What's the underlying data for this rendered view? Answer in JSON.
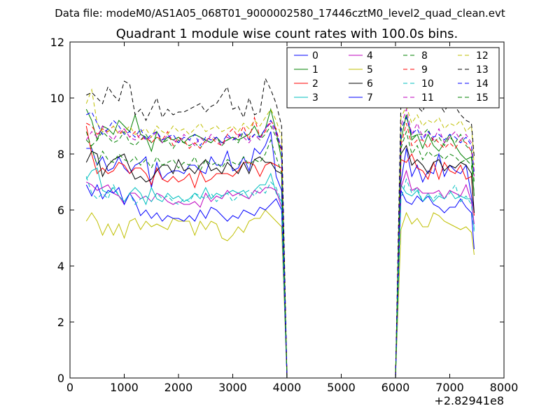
{
  "suptitle": "Data file: modeM0/AS1A05_068T01_9000002580_17446cztM0_level2_quad_clean.evt",
  "chart_data": {
    "type": "line",
    "title": "Quadrant 1 module wise count rates with 100.0s bins.",
    "xlabel": "",
    "ylabel": "",
    "x_offset_label": "+2.82941e8",
    "xlim": [
      0,
      8000
    ],
    "ylim": [
      0,
      12
    ],
    "xticks": [
      0,
      1000,
      2000,
      3000,
      4000,
      5000,
      6000,
      7000,
      8000
    ],
    "yticks": [
      0,
      2,
      4,
      6,
      8,
      10,
      12
    ],
    "legend_position": "upper-right",
    "legend_columns": 4,
    "x": [
      300,
      400,
      500,
      600,
      700,
      800,
      900,
      1000,
      1100,
      1200,
      1300,
      1400,
      1500,
      1600,
      1700,
      1800,
      1900,
      2000,
      2100,
      2200,
      2300,
      2400,
      2500,
      2600,
      2700,
      2800,
      2900,
      3000,
      3100,
      3200,
      3300,
      3400,
      3500,
      3600,
      3700,
      3800,
      3900,
      4000,
      5000,
      6000,
      6100,
      6200,
      6300,
      6400,
      6500,
      6600,
      6700,
      6800,
      6900,
      7000,
      7100,
      7200,
      7300,
      7400,
      7450
    ],
    "series": [
      {
        "name": "0",
        "color": "#0000ff",
        "dash": false,
        "values": [
          8.2,
          8.2,
          7.6,
          7.9,
          7.4,
          7.5,
          7.9,
          7.5,
          7.3,
          7.6,
          7.7,
          7.9,
          6.8,
          7.7,
          7.1,
          7.3,
          7.4,
          7.4,
          7.3,
          7.6,
          7.6,
          7.4,
          7.3,
          7.9,
          7.6,
          7.6,
          8.1,
          7.4,
          7.5,
          7.9,
          7.4,
          8.2,
          8.0,
          8.3,
          8.8,
          7.2,
          6.7,
          0,
          0,
          0,
          7.0,
          8.2,
          7.2,
          7.6,
          7.0,
          7.4,
          7.3,
          8.0,
          7.2,
          7.6,
          7.4,
          7.3,
          7.6,
          6.5,
          5.9
        ]
      },
      {
        "name": "1",
        "color": "#008000",
        "dash": false,
        "values": [
          9.6,
          9.2,
          8.5,
          9.0,
          8.9,
          8.7,
          9.2,
          9.0,
          8.8,
          9.4,
          8.7,
          8.6,
          8.1,
          8.8,
          8.4,
          8.6,
          8.5,
          8.6,
          8.4,
          8.6,
          8.7,
          8.6,
          8.5,
          8.4,
          8.6,
          8.4,
          8.5,
          8.6,
          8.5,
          8.6,
          8.7,
          9.0,
          8.6,
          8.9,
          9.6,
          8.8,
          7.8,
          0,
          0,
          0,
          8.5,
          9.4,
          8.5,
          8.7,
          8.2,
          8.7,
          8.3,
          8.1,
          8.4,
          8.7,
          8.3,
          8.0,
          7.8,
          7.9,
          6.5
        ]
      },
      {
        "name": "2",
        "color": "#ff0000",
        "dash": false,
        "values": [
          9.0,
          8.0,
          7.3,
          7.5,
          7.3,
          7.4,
          7.7,
          7.6,
          7.3,
          7.5,
          7.5,
          7.3,
          6.9,
          7.5,
          7.1,
          7.0,
          7.2,
          7.0,
          7.1,
          7.3,
          6.8,
          7.4,
          7.0,
          7.1,
          7.3,
          7.3,
          7.3,
          7.2,
          7.4,
          7.7,
          7.7,
          7.6,
          7.2,
          7.6,
          7.7,
          7.6,
          7.5,
          0,
          0,
          0,
          7.8,
          7.7,
          8.0,
          7.5,
          7.4,
          7.1,
          7.7,
          7.1,
          7.7,
          7.4,
          7.3,
          7.6,
          7.1,
          7.2,
          5.8
        ]
      },
      {
        "name": "3",
        "color": "#00bfbf",
        "dash": false,
        "values": [
          7.1,
          7.4,
          7.5,
          6.7,
          6.6,
          6.8,
          6.5,
          6.3,
          6.6,
          6.8,
          6.6,
          6.2,
          6.8,
          6.4,
          6.3,
          6.6,
          6.4,
          6.5,
          6.3,
          6.4,
          6.6,
          6.4,
          6.8,
          6.4,
          6.6,
          6.5,
          6.6,
          6.7,
          6.6,
          6.7,
          6.4,
          6.7,
          6.9,
          6.9,
          7.3,
          6.6,
          6.3,
          0,
          0,
          0,
          6.9,
          6.6,
          6.5,
          6.7,
          6.3,
          6.6,
          6.3,
          6.5,
          6.4,
          6.7,
          6.4,
          6.5,
          6.4,
          6.4,
          5.3
        ]
      },
      {
        "name": "4",
        "color": "#bf00bf",
        "dash": false,
        "values": [
          7.0,
          6.9,
          6.7,
          6.8,
          6.9,
          6.6,
          6.5,
          6.2,
          6.6,
          6.6,
          6.4,
          6.5,
          6.3,
          6.6,
          6.5,
          6.3,
          6.2,
          6.3,
          6.2,
          6.2,
          6.3,
          6.1,
          6.6,
          6.3,
          6.5,
          6.4,
          6.7,
          6.5,
          6.6,
          6.5,
          6.4,
          6.7,
          6.6,
          6.8,
          6.8,
          6.7,
          6.1,
          0,
          0,
          0,
          6.8,
          7.4,
          6.7,
          6.8,
          6.6,
          6.6,
          6.6,
          6.7,
          6.4,
          6.7,
          6.6,
          6.5,
          6.9,
          6.3,
          5.5
        ]
      },
      {
        "name": "5",
        "color": "#bfbf00",
        "dash": false,
        "values": [
          5.6,
          5.9,
          5.6,
          5.1,
          5.5,
          5.1,
          5.5,
          5.0,
          5.6,
          5.7,
          5.3,
          5.6,
          5.4,
          5.5,
          5.4,
          5.3,
          5.7,
          5.6,
          5.6,
          5.6,
          5.1,
          5.6,
          5.3,
          5.6,
          5.5,
          5.0,
          4.9,
          5.1,
          5.4,
          5.2,
          5.6,
          5.7,
          5.7,
          6.0,
          5.8,
          5.6,
          5.4,
          0,
          0,
          0,
          5.3,
          5.9,
          5.5,
          5.7,
          5.4,
          5.4,
          5.9,
          5.8,
          5.6,
          5.5,
          5.4,
          5.3,
          5.4,
          5.2,
          4.4
        ]
      },
      {
        "name": "6",
        "color": "#000000",
        "dash": false,
        "values": [
          7.7,
          8.1,
          8.0,
          7.2,
          7.6,
          7.8,
          7.9,
          8.0,
          7.5,
          7.1,
          7.2,
          7.0,
          7.1,
          7.4,
          7.6,
          7.6,
          7.3,
          7.8,
          7.4,
          7.5,
          7.3,
          7.6,
          7.8,
          7.4,
          7.5,
          7.3,
          7.7,
          7.5,
          7.3,
          7.7,
          7.3,
          7.8,
          7.9,
          7.7,
          7.7,
          7.4,
          7.3,
          0,
          0,
          0,
          8.0,
          8.3,
          7.6,
          7.8,
          7.6,
          7.3,
          7.7,
          7.8,
          7.4,
          7.6,
          7.5,
          7.7,
          7.6,
          7.3,
          5.9
        ]
      },
      {
        "name": "7",
        "color": "#0000ff",
        "dash": false,
        "values": [
          6.9,
          6.5,
          6.9,
          6.4,
          6.7,
          6.6,
          6.8,
          6.2,
          6.6,
          6.3,
          5.8,
          6.0,
          5.7,
          5.9,
          5.6,
          5.8,
          5.7,
          5.7,
          5.6,
          5.8,
          5.6,
          6.0,
          5.7,
          6.1,
          6.0,
          5.8,
          5.6,
          5.8,
          5.7,
          6.0,
          5.9,
          5.8,
          6.1,
          6.0,
          6.2,
          6.4,
          6.0,
          0,
          0,
          0,
          6.7,
          6.3,
          6.2,
          6.5,
          6.3,
          6.5,
          6.2,
          6.1,
          5.9,
          6.1,
          6.1,
          6.4,
          6.1,
          5.9,
          4.6
        ]
      },
      {
        "name": "8",
        "color": "#008000",
        "dash": true,
        "values": [
          8.5,
          8.3,
          8.5,
          8.8,
          8.6,
          8.4,
          8.5,
          8.8,
          8.4,
          8.3,
          8.5,
          8.7,
          8.4,
          8.6,
          8.4,
          8.5,
          8.2,
          8.5,
          8.4,
          8.3,
          8.4,
          8.2,
          8.5,
          8.4,
          8.6,
          8.3,
          8.5,
          8.6,
          8.4,
          8.8,
          8.5,
          8.7,
          8.5,
          8.7,
          9.0,
          8.6,
          8.1,
          0,
          0,
          0,
          8.8,
          9.4,
          8.6,
          8.7,
          8.7,
          8.9,
          8.4,
          8.6,
          8.3,
          8.6,
          8.4,
          8.7,
          8.3,
          8.1,
          7.0
        ]
      },
      {
        "name": "9",
        "color": "#ff0000",
        "dash": true,
        "values": [
          9.1,
          9.0,
          8.7,
          8.9,
          8.8,
          9.0,
          8.7,
          8.9,
          8.6,
          8.8,
          8.5,
          8.6,
          8.4,
          8.6,
          8.5,
          8.8,
          8.3,
          8.6,
          8.5,
          8.2,
          8.4,
          8.2,
          8.5,
          8.6,
          8.4,
          8.3,
          8.7,
          8.9,
          8.6,
          9.0,
          8.5,
          9.3,
          8.6,
          8.8,
          9.2,
          8.9,
          8.1,
          0,
          0,
          0,
          8.3,
          9.1,
          8.3,
          8.5,
          8.5,
          8.2,
          8.6,
          8.4,
          8.2,
          8.4,
          8.2,
          8.5,
          8.4,
          8.1,
          7.4
        ]
      },
      {
        "name": "10",
        "color": "#00bfbf",
        "dash": true,
        "values": [
          7.2,
          6.6,
          6.4,
          6.6,
          6.4,
          6.9,
          6.5,
          6.3,
          6.6,
          6.2,
          6.4,
          6.5,
          6.3,
          6.6,
          6.4,
          6.5,
          6.3,
          6.2,
          6.4,
          6.3,
          6.6,
          6.5,
          6.4,
          6.6,
          6.3,
          6.5,
          6.6,
          6.3,
          6.5,
          6.6,
          6.7,
          6.5,
          6.8,
          6.6,
          7.0,
          6.8,
          6.3,
          0,
          0,
          0,
          6.4,
          7.1,
          6.6,
          6.8,
          6.3,
          6.5,
          6.4,
          6.6,
          6.4,
          6.6,
          6.9,
          6.3,
          6.5,
          6.2,
          5.2
        ]
      },
      {
        "name": "11",
        "color": "#bf00bf",
        "dash": true,
        "values": [
          8.5,
          8.8,
          8.6,
          9.0,
          8.7,
          8.5,
          8.8,
          8.9,
          8.6,
          8.5,
          8.7,
          8.5,
          8.6,
          8.8,
          8.4,
          8.7,
          8.5,
          8.4,
          8.7,
          8.5,
          8.3,
          8.6,
          8.4,
          8.7,
          8.5,
          8.3,
          8.6,
          8.5,
          8.7,
          8.6,
          8.4,
          8.7,
          8.5,
          8.9,
          9.1,
          8.7,
          8.2,
          0,
          0,
          0,
          9.0,
          9.6,
          8.7,
          9.1,
          8.6,
          8.8,
          8.5,
          8.9,
          8.4,
          8.6,
          8.8,
          8.5,
          8.7,
          8.4,
          7.2
        ]
      },
      {
        "name": "12",
        "color": "#bfbf00",
        "dash": true,
        "values": [
          9.8,
          10.3,
          9.1,
          8.8,
          8.8,
          9.0,
          8.7,
          8.8,
          9.0,
          8.7,
          8.8,
          8.9,
          8.6,
          9.0,
          8.8,
          8.7,
          9.0,
          8.8,
          8.9,
          8.7,
          8.9,
          9.1,
          8.8,
          8.9,
          9.0,
          8.8,
          8.9,
          9.0,
          8.8,
          9.1,
          8.9,
          9.2,
          9.0,
          9.3,
          9.6,
          9.2,
          8.6,
          0,
          0,
          0,
          9.3,
          9.7,
          9.1,
          9.4,
          9.0,
          9.2,
          9.1,
          9.3,
          8.9,
          9.1,
          9.0,
          9.2,
          8.8,
          9.0,
          7.6
        ]
      },
      {
        "name": "13",
        "color": "#000000",
        "dash": true,
        "values": [
          10.1,
          10.2,
          10.0,
          9.8,
          10.4,
          10.1,
          9.9,
          10.6,
          10.5,
          9.4,
          9.6,
          9.2,
          9.6,
          10.0,
          9.3,
          9.6,
          9.4,
          9.5,
          9.5,
          9.6,
          9.7,
          9.8,
          9.5,
          9.7,
          9.8,
          10.1,
          10.4,
          9.6,
          9.7,
          9.3,
          10.0,
          9.4,
          9.5,
          10.7,
          10.3,
          9.8,
          9.0,
          0,
          0,
          0,
          9.9,
          10.5,
          9.8,
          9.7,
          9.5,
          10.1,
          10.4,
          9.8,
          9.5,
          9.9,
          9.7,
          9.4,
          9.2,
          9.1,
          7.9
        ]
      },
      {
        "name": "14",
        "color": "#0000ff",
        "dash": true,
        "values": [
          9.4,
          9.5,
          9.1,
          8.7,
          8.9,
          9.2,
          9.0,
          8.7,
          8.8,
          8.6,
          8.9,
          8.5,
          8.7,
          8.8,
          8.5,
          8.6,
          8.7,
          8.4,
          8.6,
          8.5,
          8.7,
          8.3,
          8.6,
          8.5,
          8.6,
          8.4,
          8.7,
          8.5,
          8.6,
          8.8,
          8.5,
          8.7,
          8.6,
          8.9,
          9.2,
          8.8,
          8.2,
          0,
          0,
          0,
          8.9,
          9.3,
          8.7,
          8.9,
          8.5,
          8.8,
          8.6,
          8.7,
          8.5,
          8.7,
          8.6,
          8.4,
          8.6,
          8.3,
          7.3
        ]
      },
      {
        "name": "15",
        "color": "#008000",
        "dash": true,
        "values": [
          8.8,
          8.2,
          7.6,
          8.1,
          7.8,
          7.7,
          8.0,
          7.8,
          7.7,
          7.9,
          7.6,
          7.8,
          7.5,
          7.9,
          7.6,
          7.7,
          7.8,
          7.5,
          7.7,
          7.6,
          7.9,
          7.4,
          7.8,
          7.6,
          7.7,
          7.5,
          7.8,
          7.7,
          7.6,
          7.9,
          7.6,
          7.8,
          7.7,
          8.0,
          8.5,
          7.9,
          7.3,
          0,
          0,
          0,
          8.2,
          8.8,
          8.0,
          8.3,
          7.8,
          8.1,
          7.9,
          8.0,
          7.8,
          8.0,
          7.9,
          7.7,
          7.8,
          7.6,
          6.6
        ]
      }
    ]
  }
}
